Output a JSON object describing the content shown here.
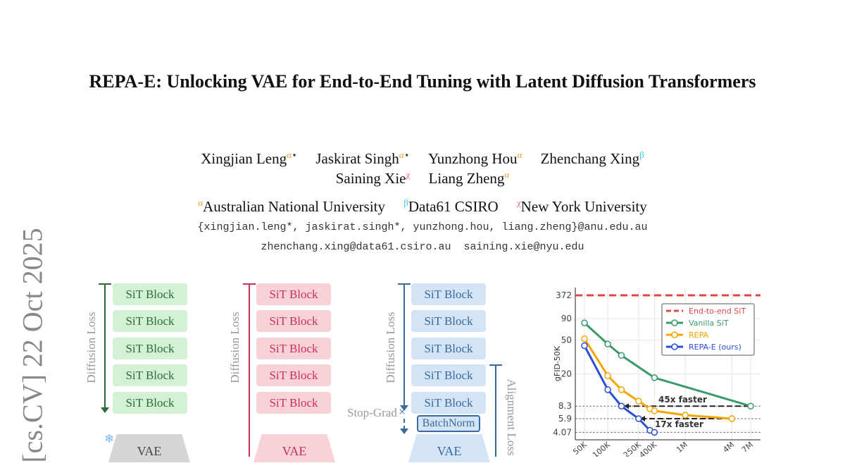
{
  "watermark": "[cs.CV]  22 Oct 2025",
  "title": "REPA-E: Unlocking VAE for End-to-End Tuning with Latent Diffusion Transformers",
  "authors": [
    {
      "name": "Xingjian Leng",
      "sup": "α",
      "mark": "⋆"
    },
    {
      "name": "Jaskirat Singh",
      "sup": "α",
      "mark": "⋆"
    },
    {
      "name": "Yunzhong Hou",
      "sup": "α",
      "mark": ""
    },
    {
      "name": "Zhenchang Xing",
      "sup": "β",
      "mark": ""
    },
    {
      "name": "Saining Xie",
      "sup": "χ",
      "mark": ""
    },
    {
      "name": "Liang Zheng",
      "sup": "α",
      "mark": ""
    }
  ],
  "affiliations": [
    {
      "sup": "α",
      "name": "Australian National University"
    },
    {
      "sup": "β",
      "name": "Data61 CSIRO"
    },
    {
      "sup": "χ",
      "name": "New York University"
    }
  ],
  "emails": [
    "{xingjian.leng*, jaskirat.singh*, yunzhong.hou, liang.zheng}@anu.edu.au",
    "zhenchang.xing@data61.csiro.au  saining.xie@nyu.edu"
  ],
  "figure": {
    "block_label": "SiT Block",
    "diffusion_loss": "Diffusion Loss",
    "alignment_loss": "Alignment Loss",
    "stop_grad": "Stop-Grad",
    "batchnorm": "BatchNorm",
    "vae": "VAE",
    "colors": {
      "green": "#2e6a38",
      "pink": "#c8305a",
      "blue": "#3a6a9c"
    }
  },
  "chart_data": {
    "type": "line",
    "ylabel": "gFID-50K",
    "xscale": "log",
    "yscale": "log",
    "x_ticks": [
      "50K",
      "100K",
      "250K",
      "400K",
      "1M",
      "4M",
      "7M"
    ],
    "y_ticks": [
      "372",
      "90",
      "50",
      "20",
      "8.3",
      "5.9",
      "4.07"
    ],
    "grid": true,
    "legend": "top-right",
    "series": [
      {
        "name": "End-to-end SiT",
        "color": "#e04848",
        "style": "dashed",
        "x": [
          50000,
          7000000
        ],
        "y": [
          372,
          372
        ]
      },
      {
        "name": "Vanilla SiT",
        "color": "#3a9a6a",
        "x": [
          50000,
          100000,
          150000,
          400000,
          7000000
        ],
        "y": [
          80,
          45,
          33,
          18,
          8.3
        ]
      },
      {
        "name": "REPA",
        "color": "#f5a500",
        "x": [
          50000,
          100000,
          150000,
          250000,
          350000,
          400000,
          1000000,
          4000000
        ],
        "y": [
          52,
          19,
          13,
          9.5,
          7.7,
          7.3,
          6.5,
          5.9
        ]
      },
      {
        "name": "REPA-E (ours)",
        "color": "#2a50d8",
        "x": [
          50000,
          100000,
          150000,
          250000,
          350000,
          400000
        ],
        "y": [
          43,
          13,
          8.3,
          5.9,
          4.3,
          4.07
        ]
      }
    ],
    "annotations": [
      "45x faster",
      "17x faster"
    ]
  }
}
